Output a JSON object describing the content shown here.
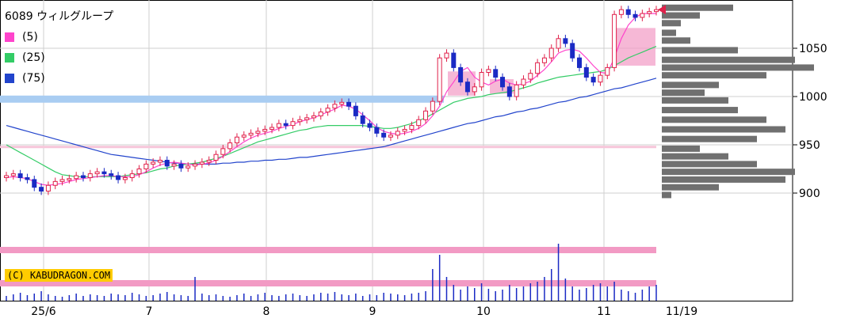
{
  "chart_data": {
    "type": "candlestick",
    "title": "6089 ウィルグループ",
    "legend": [
      {
        "label": "(5)",
        "color": "#ff44cc"
      },
      {
        "label": "(25)",
        "color": "#33cc66"
      },
      {
        "label": "(75)",
        "color": "#2244cc"
      }
    ],
    "copyright": "(C) KABUDRAGON.COM",
    "x_tick_labels": [
      "25/6",
      "7",
      "8",
      "9",
      "10",
      "11",
      "11/19"
    ],
    "y_tick_labels": [
      "1050",
      "1000",
      "950",
      "900"
    ],
    "y_ticks": [
      1050,
      1000,
      950,
      900
    ],
    "ylim": [
      850,
      1100
    ],
    "grid": true,
    "last_price_marker": 1090,
    "closes": [
      918,
      920,
      916,
      914,
      906,
      902,
      908,
      912,
      914,
      915,
      918,
      916,
      920,
      922,
      920,
      918,
      914,
      916,
      920,
      925,
      930,
      932,
      934,
      928,
      930,
      926,
      928,
      930,
      932,
      934,
      940,
      946,
      952,
      958,
      960,
      962,
      964,
      966,
      968,
      972,
      970,
      974,
      976,
      978,
      980,
      984,
      988,
      992,
      994,
      990,
      980,
      972,
      968,
      962,
      958,
      960,
      964,
      966,
      970,
      976,
      985,
      995,
      1040,
      1045,
      1030,
      1015,
      1005,
      1010,
      1025,
      1028,
      1020,
      1010,
      1000,
      1012,
      1018,
      1024,
      1035,
      1040,
      1050,
      1060,
      1055,
      1040,
      1030,
      1020,
      1015,
      1022,
      1030,
      1085,
      1090,
      1085,
      1082,
      1086,
      1088,
      1090
    ],
    "ma5": [
      916,
      917,
      916,
      915,
      912,
      909,
      908,
      909,
      910,
      912,
      914,
      915,
      916,
      917,
      918,
      918,
      917,
      917,
      917,
      919,
      922,
      926,
      929,
      931,
      932,
      931,
      930,
      929,
      930,
      931,
      934,
      938,
      943,
      948,
      953,
      957,
      960,
      962,
      964,
      967,
      969,
      971,
      974,
      976,
      978,
      981,
      984,
      987,
      991,
      990,
      987,
      981,
      975,
      968,
      964,
      962,
      961,
      962,
      964,
      967,
      972,
      980,
      990,
      1005,
      1015,
      1026,
      1030,
      1020,
      1015,
      1012,
      1016,
      1018,
      1014,
      1012,
      1013,
      1016,
      1022,
      1028,
      1036,
      1045,
      1048,
      1049,
      1047,
      1040,
      1032,
      1025,
      1024,
      1040,
      1060,
      1074,
      1082,
      1086,
      1086,
      1086
    ],
    "ma25": [
      950,
      946,
      942,
      938,
      934,
      930,
      926,
      922,
      919,
      918,
      917,
      917,
      917,
      917,
      917,
      917,
      917,
      918,
      919,
      920,
      921,
      923,
      925,
      926,
      928,
      929,
      930,
      931,
      932,
      934,
      936,
      938,
      941,
      944,
      947,
      950,
      953,
      955,
      957,
      959,
      961,
      963,
      965,
      966,
      968,
      969,
      970,
      970,
      970,
      970,
      970,
      970,
      969,
      968,
      967,
      967,
      968,
      970,
      972,
      975,
      978,
      982,
      986,
      990,
      994,
      996,
      998,
      999,
      1000,
      1002,
      1003,
      1004,
      1005,
      1007,
      1009,
      1011,
      1014,
      1016,
      1018,
      1020,
      1021,
      1022,
      1023,
      1024,
      1025,
      1026,
      1028,
      1032,
      1036,
      1040,
      1043,
      1046,
      1049,
      1052
    ],
    "ma75": [
      970,
      968,
      966,
      964,
      962,
      960,
      958,
      956,
      954,
      952,
      950,
      948,
      946,
      944,
      942,
      940,
      939,
      938,
      937,
      936,
      935,
      934,
      933,
      932,
      931,
      931,
      930,
      930,
      930,
      930,
      930,
      931,
      931,
      932,
      932,
      933,
      933,
      934,
      934,
      935,
      935,
      936,
      937,
      937,
      938,
      939,
      940,
      941,
      942,
      943,
      944,
      945,
      946,
      947,
      948,
      950,
      952,
      954,
      956,
      958,
      960,
      962,
      964,
      966,
      968,
      970,
      972,
      973,
      975,
      977,
      979,
      980,
      982,
      984,
      985,
      987,
      988,
      990,
      992,
      994,
      995,
      997,
      999,
      1000,
      1002,
      1004,
      1006,
      1008,
      1009,
      1011,
      1013,
      1015,
      1017,
      1019
    ],
    "volumes": [
      6,
      8,
      10,
      7,
      9,
      12,
      8,
      6,
      5,
      7,
      9,
      6,
      8,
      7,
      6,
      9,
      8,
      7,
      10,
      8,
      6,
      7,
      9,
      11,
      8,
      7,
      6,
      30,
      9,
      7,
      8,
      6,
      5,
      7,
      9,
      6,
      8,
      10,
      7,
      6,
      8,
      9,
      7,
      6,
      8,
      10,
      9,
      11,
      8,
      7,
      9,
      6,
      8,
      7,
      10,
      9,
      8,
      7,
      9,
      10,
      12,
      40,
      58,
      30,
      20,
      14,
      18,
      16,
      22,
      15,
      12,
      14,
      20,
      16,
      18,
      22,
      24,
      30,
      40,
      72,
      28,
      18,
      14,
      16,
      20,
      22,
      18,
      24,
      14,
      12,
      10,
      14,
      18,
      20
    ],
    "volume_profile": [
      {
        "price": 1092,
        "volume": 75
      },
      {
        "price": 1084,
        "volume": 40
      },
      {
        "price": 1076,
        "volume": 20
      },
      {
        "price": 1066,
        "volume": 15
      },
      {
        "price": 1058,
        "volume": 30
      },
      {
        "price": 1048,
        "volume": 80
      },
      {
        "price": 1038,
        "volume": 140
      },
      {
        "price": 1030,
        "volume": 160
      },
      {
        "price": 1022,
        "volume": 110
      },
      {
        "price": 1012,
        "volume": 60
      },
      {
        "price": 1004,
        "volume": 45
      },
      {
        "price": 996,
        "volume": 70
      },
      {
        "price": 986,
        "volume": 80
      },
      {
        "price": 976,
        "volume": 110
      },
      {
        "price": 966,
        "volume": 130
      },
      {
        "price": 956,
        "volume": 100
      },
      {
        "price": 946,
        "volume": 40
      },
      {
        "price": 938,
        "volume": 70
      },
      {
        "price": 930,
        "volume": 100
      },
      {
        "price": 922,
        "volume": 140
      },
      {
        "price": 914,
        "volume": 130
      },
      {
        "price": 906,
        "volume": 60
      },
      {
        "price": 898,
        "volume": 10
      }
    ]
  }
}
